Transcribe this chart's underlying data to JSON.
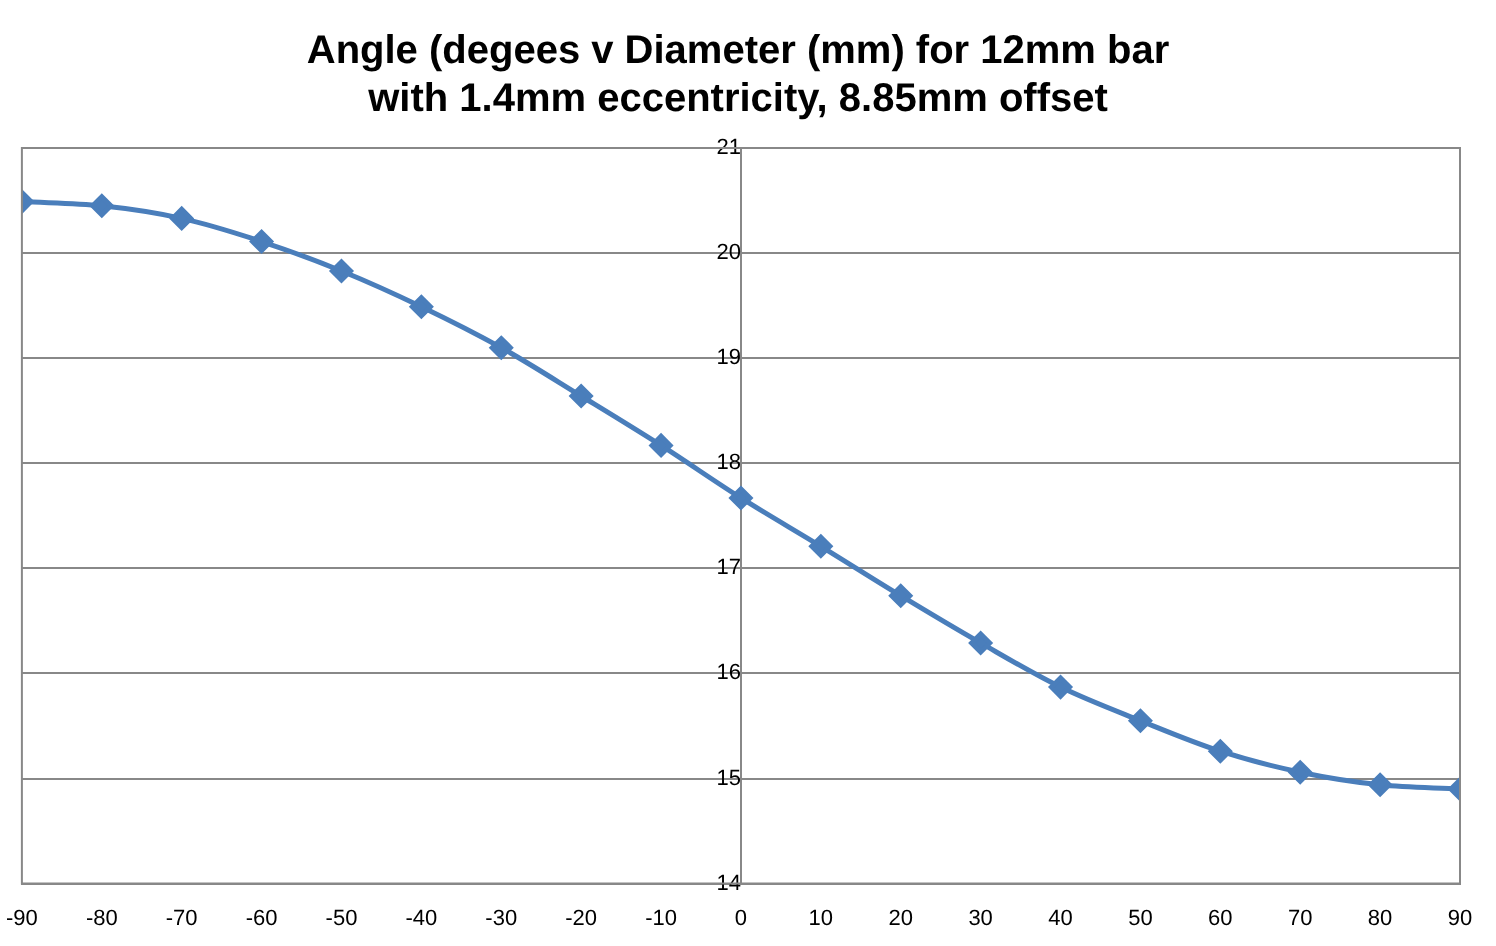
{
  "chart_data": {
    "type": "line",
    "title": "Angle (degees v Diameter (mm) for 12mm bar\nwith 1.4mm eccentricity, 8.85mm offset",
    "x": [
      -90,
      -80,
      -70,
      -60,
      -50,
      -40,
      -30,
      -20,
      -10,
      0,
      10,
      20,
      30,
      40,
      50,
      60,
      70,
      80,
      90
    ],
    "series": [
      {
        "color": "#4a7ebb",
        "values": [
          20.49,
          20.45,
          20.33,
          20.11,
          19.83,
          19.49,
          19.1,
          18.64,
          18.17,
          17.67,
          17.21,
          16.74,
          16.29,
          15.87,
          15.55,
          15.26,
          15.06,
          14.94,
          14.9
        ]
      }
    ],
    "xlim": [
      -90,
      90
    ],
    "xticks": [
      -90,
      -80,
      -70,
      -60,
      -50,
      -40,
      -30,
      -20,
      -10,
      0,
      10,
      20,
      30,
      40,
      50,
      60,
      70,
      80,
      90
    ],
    "ylim": [
      14,
      21
    ],
    "yticks": [
      14,
      15,
      16,
      17,
      18,
      19,
      20,
      21
    ],
    "grid": "y",
    "legend": false,
    "marker": "diamond",
    "line_style": "solid"
  }
}
